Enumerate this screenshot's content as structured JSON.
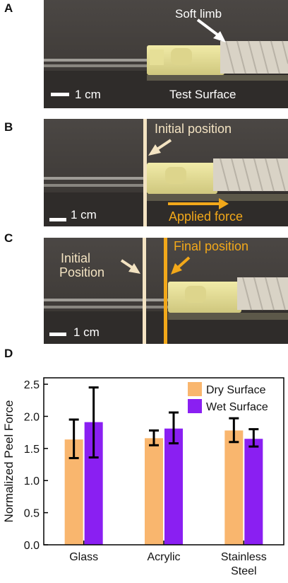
{
  "panels": {
    "a": {
      "letter": "A",
      "annotation": "Soft limb",
      "scale": "1 cm",
      "surface": "Test Surface"
    },
    "b": {
      "letter": "B",
      "annotation_initial": "Initial position",
      "scale": "1 cm",
      "annotation_force": "Applied force"
    },
    "c": {
      "letter": "C",
      "annotation_initial_line1": "Initial",
      "annotation_initial_line2": "Position",
      "annotation_final": "Final position",
      "scale": "1 cm"
    },
    "d": {
      "letter": "D"
    }
  },
  "colors": {
    "dry": "#F9B66E",
    "wet": "#8A1FF2",
    "error_bar": "#000000",
    "marker_initial": "#F3E3C2",
    "marker_final": "#F2A81A",
    "photo_bg_top": "#4a4643",
    "photo_bg_bottom": "#2e2b29"
  },
  "chart_data": {
    "type": "bar",
    "categories": [
      "Glass",
      "Acrylic",
      "Stainless Steel"
    ],
    "category_labels": [
      [
        "Glass"
      ],
      [
        "Acrylic"
      ],
      [
        "Stainless",
        "Steel"
      ]
    ],
    "series": [
      {
        "name": "Dry Surface",
        "values": [
          1.64,
          1.66,
          1.78
        ],
        "err_low": [
          1.35,
          1.55,
          1.6
        ],
        "err_high": [
          1.95,
          1.78,
          1.97
        ]
      },
      {
        "name": "Wet Surface",
        "values": [
          1.91,
          1.81,
          1.65
        ],
        "err_low": [
          1.36,
          1.58,
          1.53
        ],
        "err_high": [
          2.45,
          2.06,
          1.8
        ]
      }
    ],
    "ylabel": "Normalized Peel Force",
    "xlabel": "",
    "ylim": [
      0,
      2.6
    ],
    "yticks": [
      "0.0",
      "0.5",
      "1.0",
      "1.5",
      "2.0",
      "2.5"
    ],
    "legend_position": "top-right",
    "grid": false
  }
}
